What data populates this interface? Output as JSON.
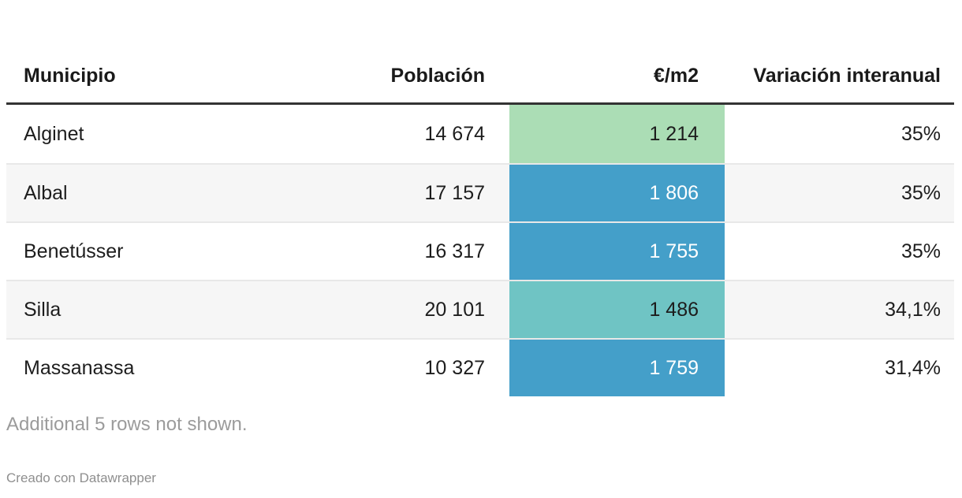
{
  "chart_data": {
    "type": "table",
    "title": "",
    "columns": [
      "Municipio",
      "Población",
      "€/m2",
      "Variación interanual"
    ],
    "rows": [
      {
        "municipio": "Alginet",
        "poblacion": "14 674",
        "eurm2": "1 214",
        "variacion": "35%",
        "eurm2_bg": "#abddb5",
        "eurm2_color": "#1d1d1d"
      },
      {
        "municipio": "Albal",
        "poblacion": "17 157",
        "eurm2": "1 806",
        "variacion": "35%",
        "eurm2_bg": "#449fc9",
        "eurm2_color": "#ffffff"
      },
      {
        "municipio": "Benetússer",
        "poblacion": "16 317",
        "eurm2": "1 755",
        "variacion": "35%",
        "eurm2_bg": "#449fc9",
        "eurm2_color": "#ffffff"
      },
      {
        "municipio": "Silla",
        "poblacion": "20 101",
        "eurm2": "1 486",
        "variacion": "34,1%",
        "eurm2_bg": "#6fc4c4",
        "eurm2_color": "#1d1d1d"
      },
      {
        "municipio": "Massanassa",
        "poblacion": "10 327",
        "eurm2": "1 759",
        "variacion": "31,4%",
        "eurm2_bg": "#449fc9",
        "eurm2_color": "#ffffff"
      }
    ],
    "heatmap_column": "€/m2",
    "layout_hints": {
      "striped_rows": true,
      "numeric_columns_right_aligned": true
    }
  },
  "header": {
    "municipio": "Municipio",
    "poblacion": "Población",
    "eurm2": "€/m2",
    "variacion": "Variación interanual"
  },
  "footer": {
    "note": "Additional 5 rows not shown.",
    "credit": "Creado con Datawrapper"
  },
  "colors": {
    "header_text": "#1a1a1a",
    "body_text": "#1d1d1d",
    "header_rule": "#333333",
    "stripe": "#f6f6f6",
    "row_border": "#e8e8e8",
    "muted_text": "#9b9b9b",
    "heat_green": "#abddb5",
    "heat_blue": "#449fc9",
    "heat_teal": "#6fc4c4"
  }
}
